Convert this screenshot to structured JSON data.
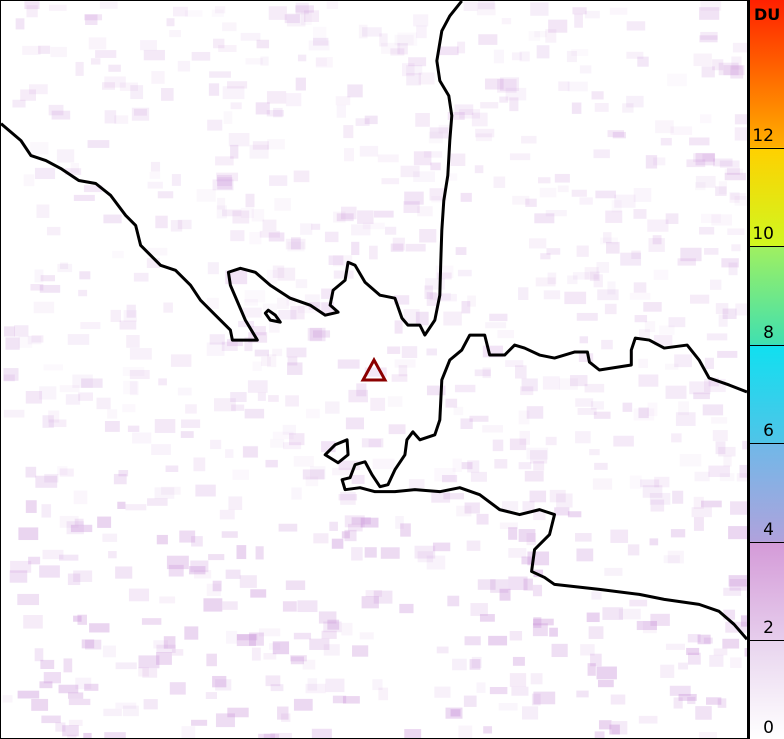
{
  "colorbar": {
    "unit": "DU",
    "min": 0,
    "max": 15,
    "ticks": [
      "0",
      "2",
      "4",
      "6",
      "8",
      "10",
      "12"
    ],
    "colors": [
      "#ffffff",
      "#e8d4ee",
      "#d8a0dc",
      "#a8a8e0",
      "#78b8e8",
      "#40c8e8",
      "#10e0f0",
      "#60e890",
      "#c0f040",
      "#ffff00",
      "#ffc000",
      "#ff7000",
      "#ff2000"
    ]
  },
  "map": {
    "marker": {
      "shape": "triangle",
      "color": "#8b0000"
    },
    "coastline_color": "#000000",
    "noise_color": "#c890d8"
  }
}
